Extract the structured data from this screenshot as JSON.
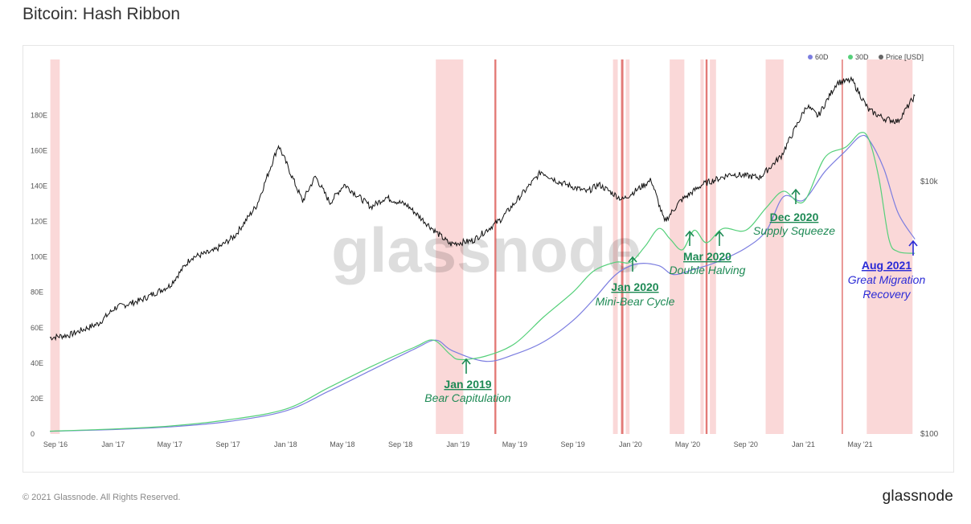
{
  "title": "Bitcoin: Hash Ribbon",
  "footer": {
    "copyright": "© 2021 Glassnode. All Rights Reserved.",
    "brand": "glassnode"
  },
  "watermark": "glassnode",
  "colors": {
    "sma60": "#7b7de0",
    "sma30": "#55d07a",
    "price": "#111111",
    "band": "#f5b8b8",
    "band_line": "#d9534f",
    "annotation_green": "#1e8a55",
    "annotation_blue": "#2b2bd6",
    "grid": "#eeeeee"
  },
  "chart_data": {
    "type": "line",
    "title": "Bitcoin: Hash Ribbon",
    "legend": {
      "placement": "top-right",
      "items": [
        {
          "name": "60D",
          "color": "#7b7de0"
        },
        {
          "name": "30D",
          "color": "#55d07a"
        },
        {
          "name": "Price [USD]",
          "color": "#666666"
        }
      ]
    },
    "x_ticks": [
      "Sep '16",
      "Jan '17",
      "May '17",
      "Sep '17",
      "Jan '18",
      "May '18",
      "Sep '18",
      "Jan '19",
      "May '19",
      "Sep '19",
      "Jan '20",
      "May '20",
      "Sep '20",
      "Jan '21",
      "May '21"
    ],
    "x_range": [
      "2016-08-20",
      "2021-08-28"
    ],
    "y_left": {
      "ticks": [
        "0",
        "20E",
        "40E",
        "60E",
        "80E",
        "100E",
        "120E",
        "140E",
        "160E",
        "180E"
      ],
      "range": [
        0,
        196
      ]
    },
    "y_right": {
      "scale": "log",
      "ticks": [
        "$100",
        "$10k"
      ],
      "tick_values": [
        100,
        10000
      ]
    },
    "grid": false,
    "series": [
      {
        "name": "60D",
        "x": [
          "2016-08-20",
          "2017-01-01",
          "2017-05-01",
          "2017-09-01",
          "2018-01-01",
          "2018-04-01",
          "2018-07-01",
          "2018-10-01",
          "2018-11-15",
          "2018-12-20",
          "2019-03-01",
          "2019-05-01",
          "2019-07-01",
          "2019-09-01",
          "2019-10-15",
          "2019-12-01",
          "2020-01-15",
          "2020-03-01",
          "2020-04-01",
          "2020-05-15",
          "2020-07-01",
          "2020-09-01",
          "2020-10-15",
          "2020-11-20",
          "2021-01-01",
          "2021-02-15",
          "2021-04-01",
          "2021-05-01",
          "2021-05-20",
          "2021-06-20",
          "2021-07-20",
          "2021-08-25"
        ],
        "y": [
          1.5,
          2.5,
          4,
          7,
          13,
          24,
          36,
          48,
          53,
          47,
          41,
          45,
          52,
          64,
          76,
          90,
          96,
          95,
          90,
          93,
          97,
          105,
          115,
          134,
          132,
          148,
          160,
          168,
          166,
          150,
          125,
          110
        ]
      },
      {
        "name": "30D",
        "x": [
          "2016-08-20",
          "2017-01-01",
          "2017-05-01",
          "2017-09-01",
          "2018-01-01",
          "2018-04-01",
          "2018-07-01",
          "2018-10-01",
          "2018-11-10",
          "2018-12-15",
          "2019-01-05",
          "2019-03-01",
          "2019-05-01",
          "2019-07-01",
          "2019-09-01",
          "2019-10-15",
          "2019-12-01",
          "2020-01-01",
          "2020-02-01",
          "2020-03-01",
          "2020-03-25",
          "2020-04-20",
          "2020-05-15",
          "2020-06-10",
          "2020-07-15",
          "2020-09-01",
          "2020-10-15",
          "2020-11-20",
          "2021-01-01",
          "2021-02-15",
          "2021-04-01",
          "2021-05-01",
          "2021-05-20",
          "2021-06-10",
          "2021-07-01",
          "2021-07-20",
          "2021-08-25"
        ],
        "y": [
          1.6,
          2.8,
          4.5,
          8,
          14,
          26,
          38,
          49,
          53,
          45,
          42,
          44,
          51,
          66,
          80,
          92,
          97,
          97,
          106,
          116,
          110,
          104,
          115,
          108,
          116,
          115,
          128,
          137,
          131,
          156,
          162,
          170,
          166,
          144,
          110,
          103,
          102
        ]
      },
      {
        "name": "Price [USD]",
        "x": [
          "2016-08-20",
          "2016-10-01",
          "2016-12-01",
          "2017-01-05",
          "2017-03-01",
          "2017-05-01",
          "2017-06-15",
          "2017-08-01",
          "2017-09-15",
          "2017-11-01",
          "2017-12-17",
          "2018-02-06",
          "2018-03-05",
          "2018-04-05",
          "2018-05-05",
          "2018-07-01",
          "2018-08-01",
          "2018-09-15",
          "2018-11-15",
          "2018-12-15",
          "2019-02-01",
          "2019-04-01",
          "2019-06-26",
          "2019-08-01",
          "2019-10-01",
          "2019-10-26",
          "2019-12-15",
          "2020-02-14",
          "2020-03-13",
          "2020-04-15",
          "2020-06-01",
          "2020-08-01",
          "2020-10-01",
          "2020-11-15",
          "2021-01-08",
          "2021-02-01",
          "2021-03-13",
          "2021-04-14",
          "2021-05-19",
          "2021-06-22",
          "2021-07-20",
          "2021-08-25"
        ],
        "y": [
          580,
          610,
          750,
          1000,
          1150,
          1500,
          2500,
          2800,
          3700,
          6500,
          19500,
          7000,
          11000,
          6800,
          9500,
          6300,
          7500,
          6500,
          4000,
          3200,
          3400,
          5000,
          12000,
          10000,
          8300,
          9500,
          7200,
          10300,
          4800,
          7000,
          9500,
          11500,
          10800,
          16000,
          40000,
          33000,
          61000,
          63500,
          37000,
          31500,
          30000,
          48000
        ]
      }
    ],
    "capitulation_periods": [
      [
        "2016-08-21",
        "2016-09-10"
      ],
      [
        "2018-11-15",
        "2019-01-12"
      ],
      [
        "2019-03-19",
        "2019-03-23"
      ],
      [
        "2019-11-25",
        "2019-12-05"
      ],
      [
        "2019-12-12",
        "2019-12-17"
      ],
      [
        "2019-12-22",
        "2019-12-30"
      ],
      [
        "2020-03-24",
        "2020-04-24"
      ],
      [
        "2020-05-28",
        "2020-06-04"
      ],
      [
        "2020-06-08",
        "2020-06-12"
      ],
      [
        "2020-06-17",
        "2020-06-30"
      ],
      [
        "2020-10-13",
        "2020-11-20"
      ],
      [
        "2021-03-23",
        "2021-03-25"
      ],
      [
        "2021-05-15",
        "2021-08-20"
      ]
    ],
    "annotations": [
      {
        "date": "2019-01-01",
        "title": "Jan 2019",
        "subtitle": "Bear Capitulation",
        "color": "green"
      },
      {
        "date": "2020-01-01",
        "title": "Jan 2020",
        "subtitle": "Mini-Bear Cycle",
        "color": "green"
      },
      {
        "date": "2020-04-25",
        "title": "Mar 2020",
        "subtitle": "Double Halving",
        "color": "green"
      },
      {
        "date": "2020-11-20",
        "title": "Dec 2020",
        "subtitle": "Supply Squeeze",
        "color": "green"
      },
      {
        "date": "2021-08-22",
        "title": "Aug 2021",
        "subtitle": "Great Migration Recovery",
        "color": "blue"
      }
    ]
  }
}
